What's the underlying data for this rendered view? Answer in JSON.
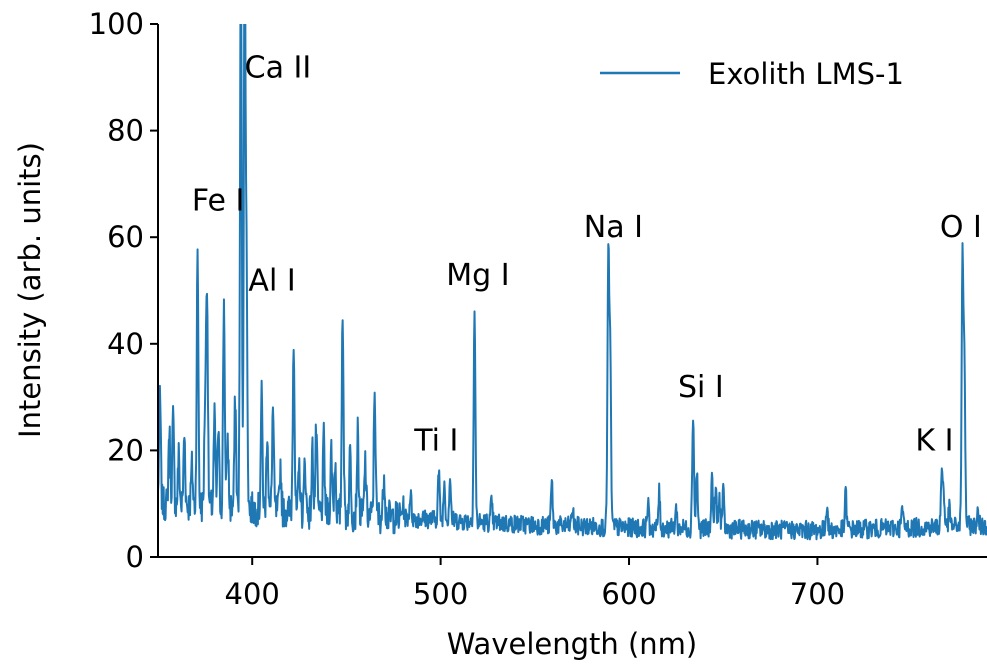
{
  "chart_data": {
    "type": "line",
    "title": "",
    "xlabel": "Wavelength (nm)",
    "ylabel": "Intensity (arb. units)",
    "xlim": [
      350,
      790
    ],
    "ylim": [
      0,
      100
    ],
    "xticks": [
      400,
      500,
      600,
      700
    ],
    "yticks": [
      0,
      20,
      40,
      60,
      80,
      100
    ],
    "grid": false,
    "legend": {
      "position": "top-right",
      "entries": [
        "Exolith LMS-1"
      ]
    },
    "series": [
      {
        "name": "Exolith LMS-1",
        "color": "#1f77b4",
        "baseline": [
          [
            350,
            10
          ],
          [
            400,
            9
          ],
          [
            450,
            8
          ],
          [
            500,
            7
          ],
          [
            550,
            6
          ],
          [
            600,
            5.5
          ],
          [
            700,
            5
          ],
          [
            750,
            5.5
          ],
          [
            790,
            6
          ]
        ],
        "peaks": [
          [
            351,
            31
          ],
          [
            356,
            24
          ],
          [
            358,
            26
          ],
          [
            361,
            19
          ],
          [
            364,
            23
          ],
          [
            368,
            17
          ],
          [
            371,
            56
          ],
          [
            375,
            28
          ],
          [
            376,
            51
          ],
          [
            380,
            26
          ],
          [
            382,
            24
          ],
          [
            385,
            48
          ],
          [
            387,
            22
          ],
          [
            391,
            30
          ],
          [
            394,
            115
          ],
          [
            396,
            115
          ],
          [
            397,
            51
          ],
          [
            405,
            30
          ],
          [
            408,
            24
          ],
          [
            411,
            28
          ],
          [
            415,
            17
          ],
          [
            422,
            42
          ],
          [
            425,
            17
          ],
          [
            428,
            18
          ],
          [
            432,
            20
          ],
          [
            434,
            24
          ],
          [
            438,
            22
          ],
          [
            442,
            20
          ],
          [
            444,
            18
          ],
          [
            448,
            47
          ],
          [
            452,
            20
          ],
          [
            456,
            23
          ],
          [
            460,
            18
          ],
          [
            465,
            32
          ],
          [
            470,
            16
          ],
          [
            480,
            10
          ],
          [
            484,
            12
          ],
          [
            499,
            16
          ],
          [
            502,
            14
          ],
          [
            505,
            15
          ],
          [
            518,
            46
          ],
          [
            527,
            10
          ],
          [
            559,
            14
          ],
          [
            570,
            9
          ],
          [
            589,
            55
          ],
          [
            590,
            38
          ],
          [
            610,
            10
          ],
          [
            616,
            12
          ],
          [
            625,
            9
          ],
          [
            634,
            27
          ],
          [
            636,
            16
          ],
          [
            644,
            15
          ],
          [
            646,
            13
          ],
          [
            648,
            11
          ],
          [
            650,
            12
          ],
          [
            705,
            10
          ],
          [
            715,
            12
          ],
          [
            745,
            9
          ],
          [
            766,
            16
          ],
          [
            767,
            12
          ],
          [
            770,
            9
          ],
          [
            777,
            55
          ],
          [
            778,
            35
          ],
          [
            785,
            8
          ]
        ]
      }
    ],
    "annotations": [
      {
        "text": "Ca II",
        "x": 396,
        "y": 90
      },
      {
        "text": "Fe I",
        "x": 368,
        "y": 65
      },
      {
        "text": "Al I",
        "x": 398,
        "y": 50
      },
      {
        "text": "Mg I",
        "x": 503,
        "y": 51
      },
      {
        "text": "Na I",
        "x": 576,
        "y": 60
      },
      {
        "text": "Ti I",
        "x": 486,
        "y": 20
      },
      {
        "text": "Si I",
        "x": 626,
        "y": 30
      },
      {
        "text": "O I",
        "x": 765,
        "y": 60
      },
      {
        "text": "K I",
        "x": 752,
        "y": 20
      }
    ]
  }
}
